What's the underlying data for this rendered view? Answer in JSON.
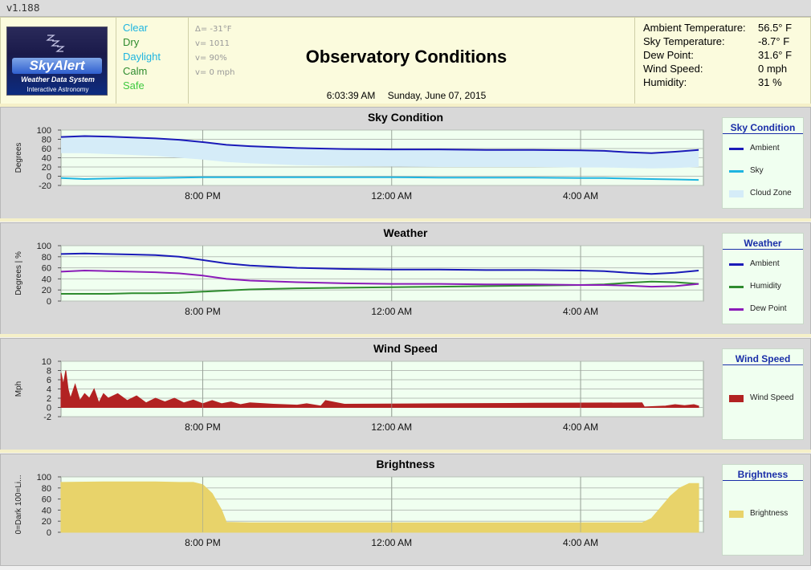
{
  "window": {
    "version": "v1.188"
  },
  "logo": {
    "brand": "SkyAlert",
    "line1": "Weather Data System",
    "line2": "Interactive Astronomy"
  },
  "status": [
    {
      "text": "Clear",
      "color": "#1fb5e0"
    },
    {
      "text": "Dry",
      "color": "#2e8b2e"
    },
    {
      "text": "Daylight",
      "color": "#1fb5e0"
    },
    {
      "text": "Calm",
      "color": "#2e8b2e"
    },
    {
      "text": "Safe",
      "color": "#3fc93f"
    }
  ],
  "deltas": [
    "Δ= -31°F",
    "v= 1011",
    "v= 90%",
    "v= 0 mph"
  ],
  "header": {
    "title": "Observatory Conditions",
    "time": "6:03:39 AM",
    "date": "Sunday, June 07, 2015"
  },
  "readouts": [
    {
      "label": "Ambient Temperature:",
      "value": "56.5° F"
    },
    {
      "label": "Sky Temperature:",
      "value": "-8.7° F"
    },
    {
      "label": "Dew Point:",
      "value": "31.6° F"
    },
    {
      "label": "Wind Speed:",
      "value": "0 mph"
    },
    {
      "label": "Humidity:",
      "value": "31 %"
    }
  ],
  "chart_data": [
    {
      "type": "line",
      "title": "Sky Condition",
      "ylabel": "Degrees",
      "ylim": [
        -20,
        100
      ],
      "yticks": [
        -20,
        0,
        20,
        40,
        60,
        80,
        100
      ],
      "xticks": [
        "8:00 PM",
        "12:00 AM",
        "4:00 AM"
      ],
      "x_hours": [
        0,
        0.5,
        1,
        1.5,
        2,
        2.5,
        3,
        3.5,
        4,
        5,
        6,
        7,
        8,
        9,
        10,
        11,
        11.5,
        12,
        12.5,
        13,
        13.5
      ],
      "xlim_hours": [
        0,
        13.6
      ],
      "legend_title": "Sky Condition",
      "series": [
        {
          "name": "Ambient",
          "color": "#1a1ab8",
          "legend_swatch": "line",
          "values": [
            85,
            87,
            86,
            84,
            82,
            79,
            74,
            68,
            65,
            61,
            59,
            58,
            58,
            57,
            57,
            56,
            55,
            52,
            50,
            53,
            57
          ]
        },
        {
          "name": "Sky",
          "color": "#1fb5e0",
          "legend_swatch": "line",
          "values": [
            -4,
            -6,
            -5,
            -4,
            -4,
            -3,
            -2,
            -2,
            -2,
            -2,
            -2,
            -2,
            -3,
            -3,
            -3,
            -4,
            -4,
            -5,
            -6,
            -7,
            -8
          ]
        },
        {
          "name": "Cloud Zone",
          "color": "#d5ecf8",
          "legend_swatch": "block",
          "band_upper": "Ambient",
          "band_lower_values": [
            50,
            50,
            48,
            46,
            44,
            40,
            36,
            31,
            28,
            24,
            22,
            21,
            20,
            20,
            20,
            19,
            19,
            18,
            17,
            18,
            20
          ]
        }
      ]
    },
    {
      "type": "line",
      "title": "Weather",
      "ylabel": "Degrees | %",
      "ylim": [
        0,
        100
      ],
      "yticks": [
        0,
        20,
        40,
        60,
        80,
        100
      ],
      "xticks": [
        "8:00 PM",
        "12:00 AM",
        "4:00 AM"
      ],
      "x_hours": [
        0,
        0.5,
        1,
        1.5,
        2,
        2.5,
        3,
        3.5,
        4,
        5,
        6,
        7,
        8,
        9,
        10,
        11,
        11.5,
        12,
        12.5,
        13,
        13.5
      ],
      "xlim_hours": [
        0,
        13.6
      ],
      "legend_title": "Weather",
      "series": [
        {
          "name": "Ambient",
          "color": "#1a1ab8",
          "legend_swatch": "line",
          "values": [
            85,
            86,
            85,
            84,
            83,
            80,
            74,
            68,
            64,
            60,
            58,
            57,
            57,
            56,
            56,
            55,
            54,
            51,
            49,
            51,
            55
          ]
        },
        {
          "name": "Humidity",
          "color": "#2e8b2e",
          "legend_swatch": "line",
          "values": [
            13,
            13,
            13,
            14,
            14,
            15,
            17,
            19,
            21,
            23,
            24,
            25,
            26,
            27,
            28,
            29,
            30,
            33,
            35,
            34,
            31
          ]
        },
        {
          "name": "Dew Point",
          "color": "#8a1ab8",
          "legend_swatch": "line",
          "values": [
            53,
            55,
            54,
            53,
            52,
            50,
            46,
            40,
            37,
            34,
            32,
            31,
            31,
            30,
            30,
            29,
            29,
            28,
            26,
            27,
            31
          ]
        }
      ]
    },
    {
      "type": "area",
      "title": "Wind Speed",
      "ylabel": "Mph",
      "ylim": [
        -2,
        10
      ],
      "yticks": [
        -2,
        0,
        2,
        4,
        6,
        8,
        10
      ],
      "xticks": [
        "8:00 PM",
        "12:00 AM",
        "4:00 AM"
      ],
      "x_hours": [
        0,
        0.05,
        0.1,
        0.15,
        0.2,
        0.3,
        0.4,
        0.5,
        0.6,
        0.7,
        0.8,
        0.9,
        1,
        1.2,
        1.4,
        1.6,
        1.8,
        2,
        2.2,
        2.4,
        2.6,
        2.8,
        3,
        3.2,
        3.4,
        3.6,
        3.8,
        4,
        4.5,
        5,
        5.2,
        5.5,
        5.6,
        6,
        8,
        10,
        12.3,
        12.35,
        12.8,
        13.0,
        13.2,
        13.4,
        13.5
      ],
      "xlim_hours": [
        0,
        13.6
      ],
      "legend_title": "Wind Speed",
      "series": [
        {
          "name": "Wind Speed",
          "color": "#b22222",
          "legend_swatch": "block",
          "values": [
            7.5,
            5,
            8,
            4,
            2,
            5,
            1.5,
            3,
            2,
            4,
            1,
            3,
            2,
            3,
            1.5,
            2.5,
            1,
            2,
            1.2,
            2,
            1,
            1.6,
            0.8,
            1.5,
            0.8,
            1.2,
            0.6,
            1,
            0.7,
            0.5,
            0.8,
            0.3,
            1.5,
            0.7,
            0.8,
            0.9,
            1.0,
            0.1,
            0.3,
            0.6,
            0.4,
            0.6,
            0.3
          ]
        }
      ]
    },
    {
      "type": "area",
      "title": "Brightness",
      "ylabel": "0=Dark 100=Li...",
      "ylim": [
        0,
        100
      ],
      "yticks": [
        0,
        20,
        40,
        60,
        80,
        100
      ],
      "xticks": [
        "8:00 PM",
        "12:00 AM",
        "4:00 AM"
      ],
      "x_hours": [
        0,
        1,
        2,
        2.5,
        2.8,
        3.0,
        3.2,
        3.4,
        3.5,
        4,
        6,
        8,
        10,
        12.3,
        12.5,
        12.7,
        12.9,
        13.1,
        13.3,
        13.5
      ],
      "xlim_hours": [
        0,
        13.6
      ],
      "legend_title": "Brightness",
      "series": [
        {
          "name": "Brightness",
          "color": "#e8d36a",
          "legend_swatch": "block",
          "values": [
            90,
            91,
            91,
            90,
            90,
            86,
            70,
            40,
            18,
            17,
            17,
            17,
            17,
            17,
            25,
            45,
            65,
            80,
            88,
            88
          ]
        }
      ]
    }
  ]
}
